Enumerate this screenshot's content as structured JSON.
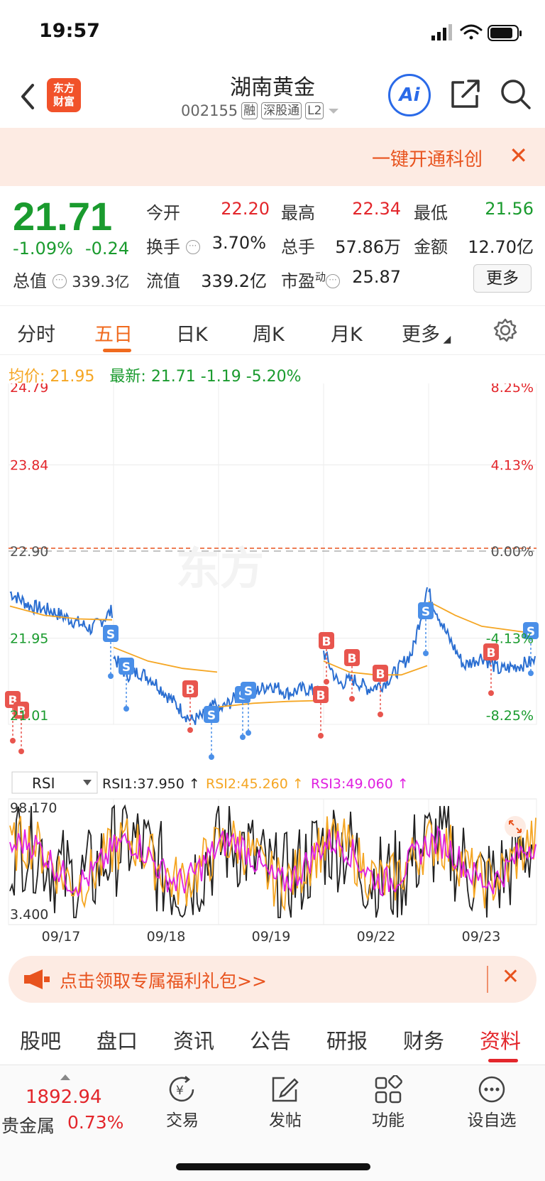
{
  "status": {
    "time": "19:57"
  },
  "nav": {
    "logo_line1": "东方",
    "logo_line2": "财富",
    "title": "湖南黄金",
    "code": "002155",
    "tags": [
      "融",
      "深股通",
      "L2"
    ],
    "ai_label": "Ai"
  },
  "banner": {
    "text": "一键开通科创",
    "close": "✕"
  },
  "quote": {
    "price": "21.71",
    "change_pct": "-1.09%",
    "change": "-0.24",
    "open_label": "今开",
    "open": "22.20",
    "high_label": "最高",
    "high": "22.34",
    "low_label": "最低",
    "low": "21.56",
    "turnover_label": "换手",
    "turnover": "3.70%",
    "volume_label": "总手",
    "volume": "57.86万",
    "amount_label": "金额",
    "amount": "12.70亿",
    "mcap_label": "总值",
    "mcap": "339.3亿",
    "float_label": "流值",
    "float": "339.2亿",
    "pe_label": "市盈",
    "pe_sup": "动",
    "pe": "25.87",
    "more": "更多"
  },
  "tabs": [
    "分时",
    "五日",
    "日K",
    "周K",
    "月K",
    "更多"
  ],
  "active_tab": "五日",
  "legend": {
    "avg_label": "均价:",
    "avg": "21.95",
    "last_label": "最新:",
    "last": "21.71",
    "chg": "-1.19",
    "pct": "-5.20%"
  },
  "chart_data": {
    "type": "line",
    "title": "",
    "price_axis": [
      "24.79",
      "23.84",
      "22.90",
      "21.95",
      "21.01"
    ],
    "pct_axis": [
      "8.25%",
      "4.13%",
      "0.00%",
      "-4.13%",
      "-8.25%"
    ],
    "x_labels": [
      "09/17",
      "09/18",
      "09/19",
      "09/22",
      "09/23"
    ],
    "ylim": [
      21.01,
      24.79
    ],
    "prev_close": 22.9,
    "series": [
      {
        "name": "",
        "color": "#2a6ed1",
        "role": "price"
      },
      {
        "name": "",
        "color": "#f5a623",
        "role": "average"
      }
    ],
    "signals": [
      {
        "t": "B"
      },
      {
        "t": "B"
      },
      {
        "t": "S"
      },
      {
        "t": "S"
      },
      {
        "t": "B"
      },
      {
        "t": "S"
      },
      {
        "t": "S"
      },
      {
        "t": "S"
      },
      {
        "t": "B"
      },
      {
        "t": "B"
      },
      {
        "t": "B"
      },
      {
        "t": "B"
      },
      {
        "t": "S"
      },
      {
        "t": "B"
      },
      {
        "t": "S"
      }
    ]
  },
  "rsi": {
    "selector": "RSI",
    "rsi1": "RSI1:37.950 ↑",
    "rsi2": "RSI2:45.260 ↑",
    "rsi3": "RSI3:49.060 ↑",
    "max": "98.170",
    "min": "3.400",
    "colors": {
      "rsi1": "#222222",
      "rsi2": "#f5a623",
      "rsi3": "#e020e0"
    }
  },
  "promo": {
    "text": "点击领取专属福利礼包>>",
    "close": "✕"
  },
  "bottom_tabs": [
    "股吧",
    "盘口",
    "资讯",
    "公告",
    "研报",
    "财务",
    "资料"
  ],
  "active_bottom_tab": "资料",
  "dock": {
    "index_value": "1892.94",
    "index_name": "贵金属",
    "index_change": "0.73%",
    "items": [
      "交易",
      "发帖",
      "功能",
      "设自选"
    ]
  }
}
